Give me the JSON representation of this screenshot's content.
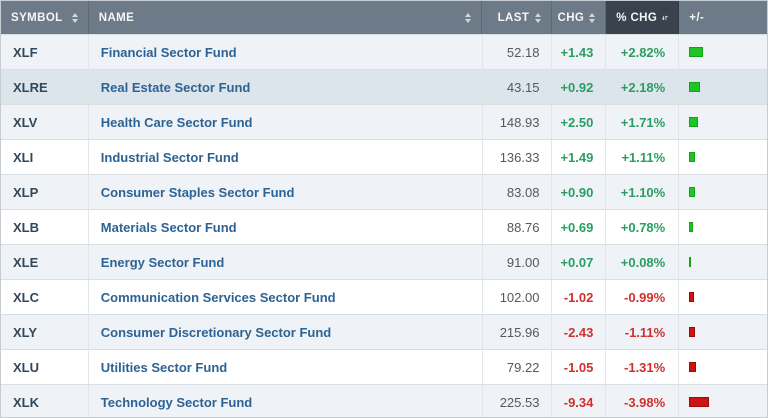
{
  "table": {
    "columns": [
      {
        "key": "symbol",
        "label": "SYMBOL",
        "sortable": true
      },
      {
        "key": "name",
        "label": "NAME",
        "sortable": true
      },
      {
        "key": "last",
        "label": "LAST",
        "sortable": true
      },
      {
        "key": "chg",
        "label": "CHG",
        "sortable": true
      },
      {
        "key": "pct_chg",
        "label": "% CHG",
        "sortable": true,
        "active_sort": "desc"
      },
      {
        "key": "bar",
        "label": "+/-",
        "sortable": false
      }
    ],
    "rows": [
      {
        "symbol": "XLF",
        "name": "Financial Sector Fund",
        "last": "52.18",
        "chg": "+1.43",
        "pct_chg": "+2.82%",
        "direction": "up",
        "highlighted": false
      },
      {
        "symbol": "XLRE",
        "name": "Real Estate Sector Fund",
        "last": "43.15",
        "chg": "+0.92",
        "pct_chg": "+2.18%",
        "direction": "up",
        "highlighted": true
      },
      {
        "symbol": "XLV",
        "name": "Health Care Sector Fund",
        "last": "148.93",
        "chg": "+2.50",
        "pct_chg": "+1.71%",
        "direction": "up",
        "highlighted": false
      },
      {
        "symbol": "XLI",
        "name": "Industrial Sector Fund",
        "last": "136.33",
        "chg": "+1.49",
        "pct_chg": "+1.11%",
        "direction": "up",
        "highlighted": false
      },
      {
        "symbol": "XLP",
        "name": "Consumer Staples Sector Fund",
        "last": "83.08",
        "chg": "+0.90",
        "pct_chg": "+1.10%",
        "direction": "up",
        "highlighted": false
      },
      {
        "symbol": "XLB",
        "name": "Materials Sector Fund",
        "last": "88.76",
        "chg": "+0.69",
        "pct_chg": "+0.78%",
        "direction": "up",
        "highlighted": false
      },
      {
        "symbol": "XLE",
        "name": "Energy Sector Fund",
        "last": "91.00",
        "chg": "+0.07",
        "pct_chg": "+0.08%",
        "direction": "up",
        "highlighted": false
      },
      {
        "symbol": "XLC",
        "name": "Communication Services Sector Fund",
        "last": "102.00",
        "chg": "-1.02",
        "pct_chg": "-0.99%",
        "direction": "down",
        "highlighted": false
      },
      {
        "symbol": "XLY",
        "name": "Consumer Discretionary Sector Fund",
        "last": "215.96",
        "chg": "-2.43",
        "pct_chg": "-1.11%",
        "direction": "down",
        "highlighted": false
      },
      {
        "symbol": "XLU",
        "name": "Utilities Sector Fund",
        "last": "79.22",
        "chg": "-1.05",
        "pct_chg": "-1.31%",
        "direction": "down",
        "highlighted": false
      },
      {
        "symbol": "XLK",
        "name": "Technology Sector Fund",
        "last": "225.53",
        "chg": "-9.34",
        "pct_chg": "-3.98%",
        "direction": "down",
        "highlighted": false
      }
    ]
  },
  "icons": {
    "sort_both": "sort-updown-icon",
    "sort_desc": "sort-descending-icon"
  },
  "colors": {
    "header_bg": "#6d7b88",
    "header_active_bg": "#3a434d",
    "positive_text": "#2a9e61",
    "negative_text": "#d0312d",
    "bar_positive": "#1fc527",
    "bar_negative": "#cf1212",
    "row_odd": "#eff3f7",
    "row_even": "#ffffff",
    "row_highlight": "#dce4ec",
    "name_link": "#2d6394",
    "symbol_text": "#33475a"
  }
}
